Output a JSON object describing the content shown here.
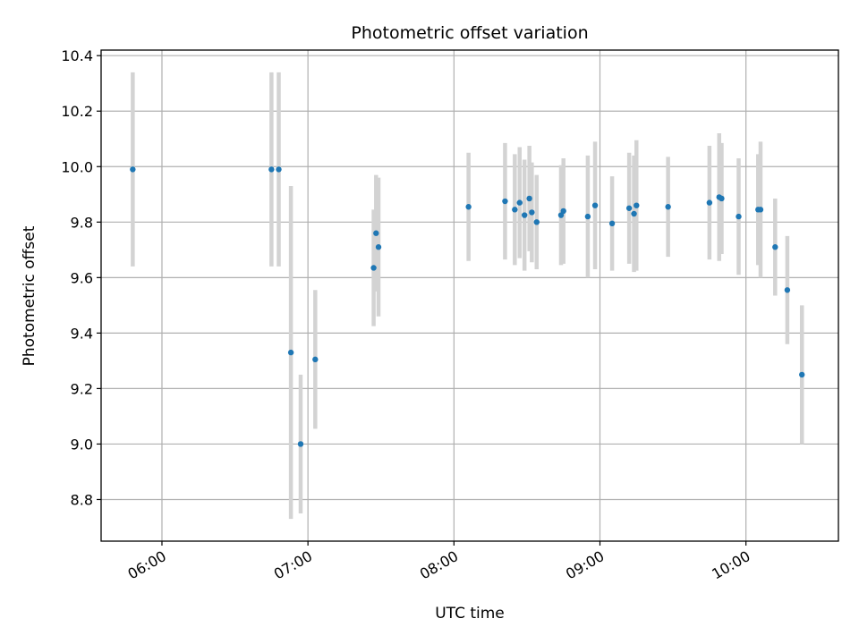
{
  "chart_data": {
    "type": "scatter",
    "title": "Photometric offset variation",
    "xlabel": "UTC time",
    "ylabel": "Photometric offset",
    "x_axis_type": "time",
    "xlim": [
      "05:35",
      "10:38"
    ],
    "ylim": [
      8.65,
      10.42
    ],
    "x_ticks": [
      "06:00",
      "07:00",
      "08:00",
      "09:00",
      "10:00"
    ],
    "y_ticks": [
      8.8,
      9.0,
      9.2,
      9.4,
      9.6,
      9.8,
      10.0,
      10.2,
      10.4
    ],
    "y_tick_labels": [
      "8.8",
      "9.0",
      "9.2",
      "9.4",
      "9.6",
      "9.8",
      "10.0",
      "10.2",
      "10.4"
    ],
    "grid": true,
    "series": [
      {
        "marker_color": "#1f77b4",
        "errorbar_color": "#d3d3d3",
        "points": [
          {
            "x": "05:48",
            "y": 9.99,
            "err": 0.35
          },
          {
            "x": "06:45",
            "y": 9.99,
            "err": 0.35
          },
          {
            "x": "06:48",
            "y": 9.99,
            "err": 0.35
          },
          {
            "x": "06:53",
            "y": 9.33,
            "err": 0.6
          },
          {
            "x": "06:57",
            "y": 9.0,
            "err": 0.25
          },
          {
            "x": "07:03",
            "y": 9.305,
            "err": 0.25
          },
          {
            "x": "07:27",
            "y": 9.635,
            "err": 0.21
          },
          {
            "x": "07:28",
            "y": 9.76,
            "err": 0.21
          },
          {
            "x": "07:29",
            "y": 9.71,
            "err": 0.25
          },
          {
            "x": "08:06",
            "y": 9.855,
            "err": 0.195
          },
          {
            "x": "08:21",
            "y": 9.875,
            "err": 0.21
          },
          {
            "x": "08:25",
            "y": 9.845,
            "err": 0.2
          },
          {
            "x": "08:27",
            "y": 9.87,
            "err": 0.2
          },
          {
            "x": "08:29",
            "y": 9.825,
            "err": 0.2
          },
          {
            "x": "08:31",
            "y": 9.885,
            "err": 0.19
          },
          {
            "x": "08:32",
            "y": 9.835,
            "err": 0.18
          },
          {
            "x": "08:34",
            "y": 9.8,
            "err": 0.17
          },
          {
            "x": "08:44",
            "y": 9.825,
            "err": 0.18
          },
          {
            "x": "08:45",
            "y": 9.84,
            "err": 0.19
          },
          {
            "x": "08:55",
            "y": 9.82,
            "err": 0.22
          },
          {
            "x": "08:58",
            "y": 9.86,
            "err": 0.23
          },
          {
            "x": "09:05",
            "y": 9.795,
            "err": 0.17
          },
          {
            "x": "09:12",
            "y": 9.85,
            "err": 0.2
          },
          {
            "x": "09:14",
            "y": 9.83,
            "err": 0.21
          },
          {
            "x": "09:15",
            "y": 9.86,
            "err": 0.235
          },
          {
            "x": "09:28",
            "y": 9.855,
            "err": 0.18
          },
          {
            "x": "09:45",
            "y": 9.87,
            "err": 0.205
          },
          {
            "x": "09:49",
            "y": 9.89,
            "err": 0.23
          },
          {
            "x": "09:50",
            "y": 9.885,
            "err": 0.2
          },
          {
            "x": "09:57",
            "y": 9.82,
            "err": 0.21
          },
          {
            "x": "10:05",
            "y": 9.845,
            "err": 0.2
          },
          {
            "x": "10:06",
            "y": 9.845,
            "err": 0.245
          },
          {
            "x": "10:12",
            "y": 9.71,
            "err": 0.175
          },
          {
            "x": "10:17",
            "y": 9.555,
            "err": 0.195
          },
          {
            "x": "10:23",
            "y": 9.25,
            "err": 0.25
          }
        ]
      }
    ]
  }
}
